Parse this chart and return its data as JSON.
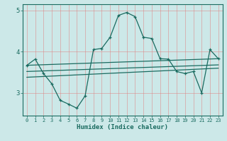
{
  "xlabel": "Humidex (Indice chaleur)",
  "bg_color": "#cce8e8",
  "line_color": "#1a6b60",
  "grid_color": "#e08080",
  "xlim": [
    -0.5,
    23.5
  ],
  "ylim": [
    2.45,
    5.15
  ],
  "yticks": [
    3,
    4,
    5
  ],
  "xtick_labels": [
    "0",
    "1",
    "2",
    "3",
    "4",
    "5",
    "6",
    "7",
    "8",
    "9",
    "10",
    "11",
    "12",
    "13",
    "14",
    "15",
    "16",
    "17",
    "18",
    "19",
    "20",
    "21",
    "22",
    "23"
  ],
  "line1_x": [
    0,
    1,
    2,
    3,
    4,
    5,
    6,
    7,
    8,
    9,
    10,
    11,
    12,
    13,
    14,
    15,
    16,
    17,
    18,
    19,
    20,
    21,
    22,
    23
  ],
  "line1_y": [
    3.67,
    3.82,
    3.47,
    3.22,
    2.82,
    2.73,
    2.63,
    2.93,
    4.05,
    4.08,
    4.35,
    4.88,
    4.95,
    4.85,
    4.35,
    4.32,
    3.83,
    3.82,
    3.52,
    3.47,
    3.52,
    3.0,
    4.05,
    3.83
  ],
  "line2_x": [
    0,
    23
  ],
  "line2_y": [
    3.67,
    3.83
  ],
  "line3_x": [
    0,
    23
  ],
  "line3_y": [
    3.52,
    3.68
  ],
  "line4_x": [
    0,
    23
  ],
  "line4_y": [
    3.38,
    3.6
  ]
}
